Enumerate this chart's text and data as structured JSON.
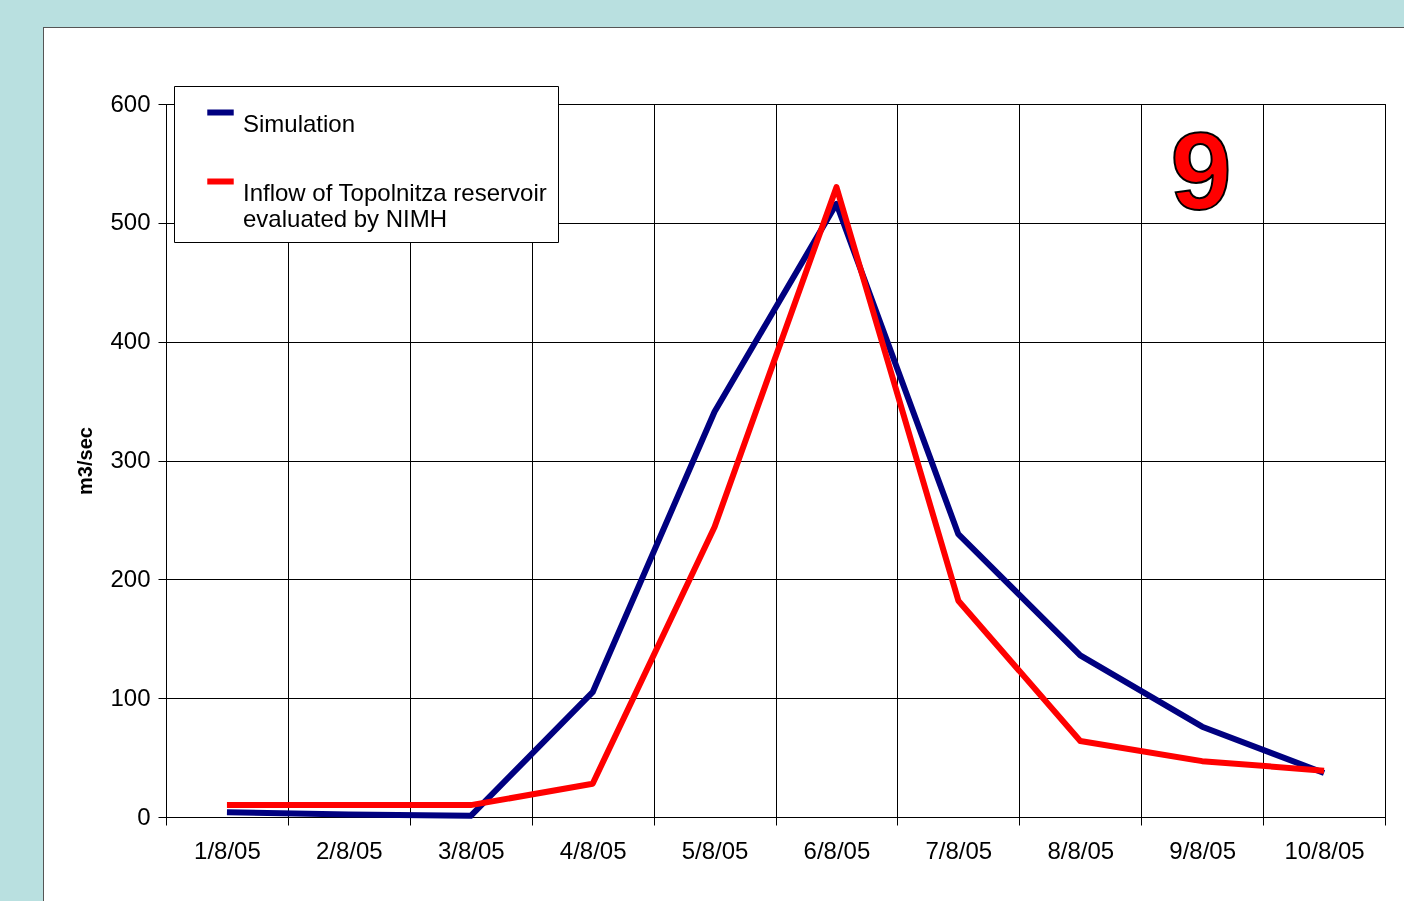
{
  "chart_data": {
    "type": "line",
    "ylabel": "m3/sec",
    "categories": [
      "1/8/05",
      "2/8/05",
      "3/8/05",
      "4/8/05",
      "5/8/05",
      "6/8/05",
      "7/8/05",
      "8/8/05",
      "9/8/05",
      "10/8/05"
    ],
    "series": [
      {
        "name": "Simulation",
        "color": "#000080",
        "values": [
          4,
          2,
          1,
          105,
          341,
          516,
          238,
          136,
          76,
          37
        ]
      },
      {
        "name": "Inflow of Topolnitza reservoir evaluated by NIMH",
        "color": "#ff0000",
        "values": [
          10,
          10,
          10,
          28,
          244,
          530,
          182,
          64,
          47,
          39
        ]
      }
    ],
    "ylim": [
      0,
      600
    ],
    "yticks": [
      0,
      100,
      200,
      300,
      400,
      500,
      600
    ],
    "grid": true,
    "legend": "top left",
    "line_style": "solid",
    "marker": "none",
    "annotations": [
      "9"
    ]
  }
}
